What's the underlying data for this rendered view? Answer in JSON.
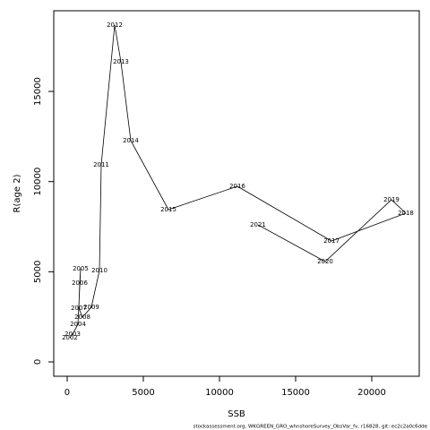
{
  "chart_data": {
    "type": "line",
    "x_label": "SSB",
    "y_label": "R(age 2)",
    "note": "stockassessment.org, WKGREEN_GRO_whnshoreSurvey_ObsVar_fv, r16828, git: ec2c2a0c6dde",
    "x": [
      176,
      353,
      706,
      882,
      824,
      765,
      1000,
      1588,
      2118,
      2235,
      3118,
      3529,
      4176,
      6647,
      11176,
      17353,
      22235,
      21294,
      16941,
      12529
    ],
    "series": [
      {
        "color": "#000000",
        "label_color": "#ff0000",
        "labels": [
          "2002",
          "2003",
          "2004",
          "2005",
          "2006",
          "2007",
          "2008",
          "2009",
          "2010",
          "2011",
          "2012",
          "2013",
          "2014",
          "2015",
          "2016",
          "2017",
          "2018",
          "2019",
          "2020",
          "2021"
        ],
        "values": [
          1341,
          1540,
          2086,
          5166,
          4372,
          2981,
          2484,
          3030,
          5067,
          10929,
          18679,
          16642,
          12270,
          8445,
          9737,
          6706,
          8246,
          8992,
          5564,
          7601
        ]
      }
    ],
    "xlim": [
      -882,
      23118
    ],
    "ylim": [
      -795,
      19473
    ],
    "xticks": [
      0,
      5000,
      10000,
      15000,
      20000
    ],
    "yticks": [
      0,
      5000,
      10000,
      15000
    ]
  }
}
